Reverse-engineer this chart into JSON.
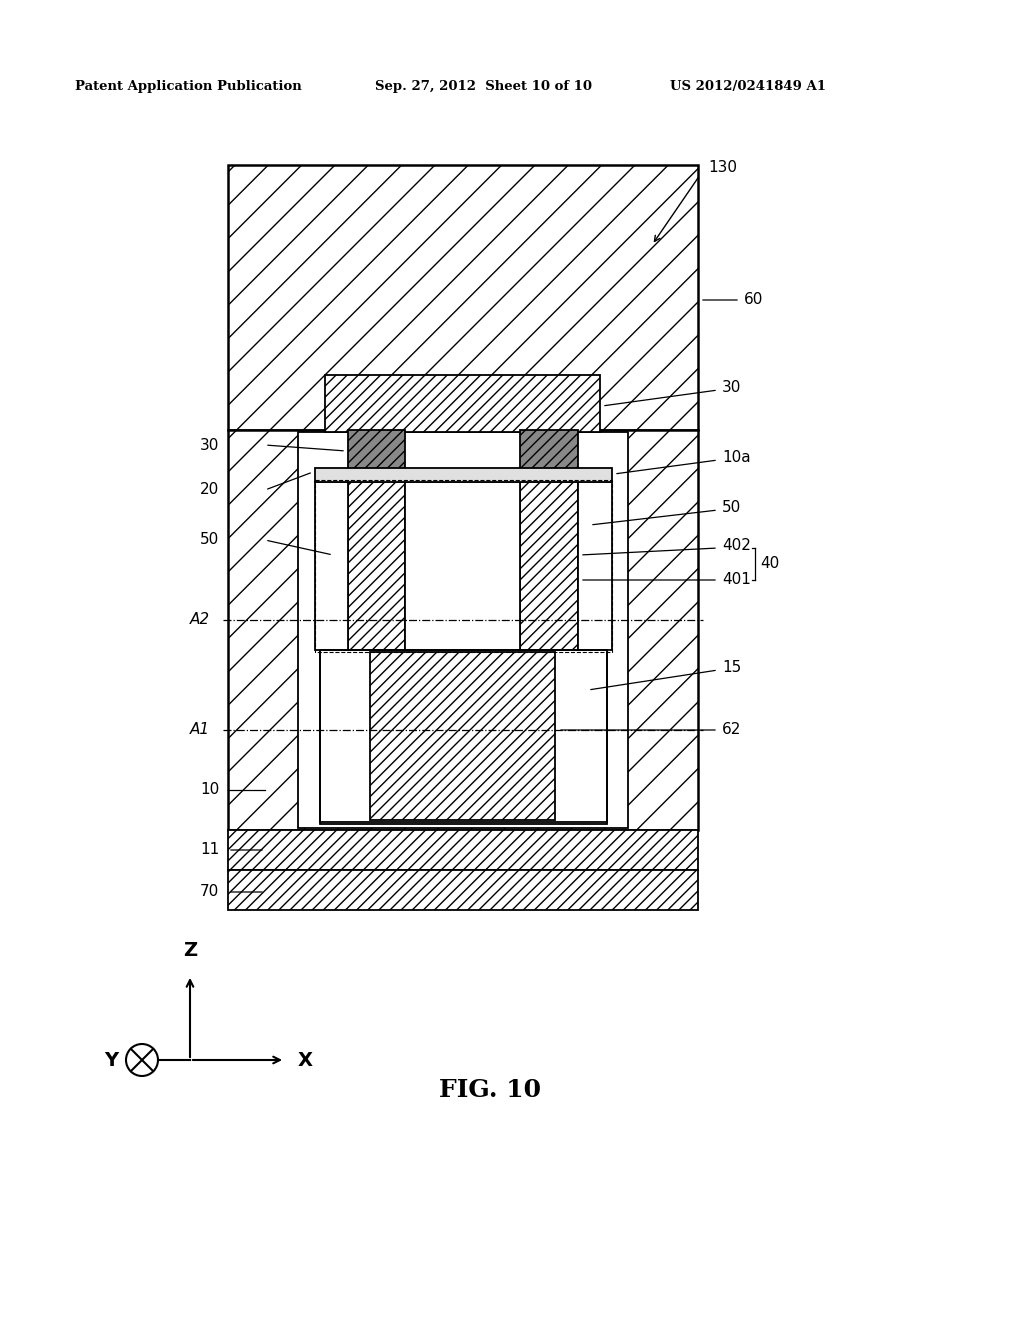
{
  "header_left": "Patent Application Publication",
  "header_mid": "Sep. 27, 2012  Sheet 10 of 10",
  "header_right": "US 2012/0241849 A1",
  "fig_label": "FIG. 10",
  "bg_color": "#ffffff"
}
